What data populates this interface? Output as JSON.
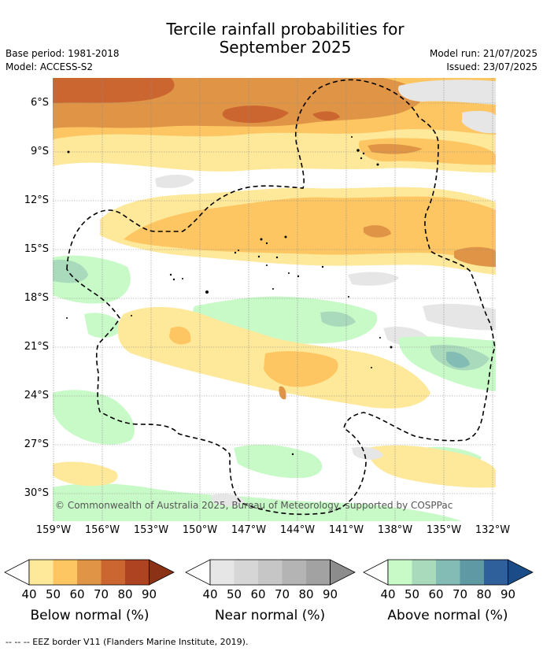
{
  "title_line1": "Tercile rainfall probabilities for",
  "title_line2": "September 2025",
  "base_period": "Base period: 1981-2018",
  "model": "Model: ACCESS-S2",
  "model_run": "Model run: 21/07/2025",
  "issued": "Issued: 23/07/2025",
  "lat_labels": [
    "6°S",
    "9°S",
    "12°S",
    "15°S",
    "18°S",
    "21°S",
    "24°S",
    "27°S",
    "30°S"
  ],
  "lon_labels": [
    "159°W",
    "156°W",
    "153°W",
    "150°W",
    "147°W",
    "144°W",
    "141°W",
    "138°W",
    "135°W",
    "132°W"
  ],
  "copyright": "© Commonwealth of Australia 2025, Bureau of Meteorology, supported by COSPPac",
  "footer": "--  --  -- EEZ border V11 (Flanders Marine Institute, 2019).",
  "colorbars": [
    {
      "name": "below",
      "title": "Below normal (%)",
      "ticks": [
        "40",
        "50",
        "60",
        "70",
        "80",
        "90"
      ],
      "colors": [
        "#ffffff",
        "#fee899",
        "#fdc662",
        "#e09445",
        "#cc6630",
        "#ad4321",
        "#8b3216"
      ]
    },
    {
      "name": "near",
      "title": "Near normal (%)",
      "ticks": [
        "40",
        "50",
        "60",
        "70",
        "80",
        "90"
      ],
      "colors": [
        "#ffffff",
        "#e6e6e6",
        "#d6d6d6",
        "#c6c6c6",
        "#b4b4b4",
        "#a2a2a2",
        "#8c8c8c"
      ]
    },
    {
      "name": "above",
      "title": "Above normal (%)",
      "ticks": [
        "40",
        "50",
        "60",
        "70",
        "80",
        "90"
      ],
      "colors": [
        "#ffffff",
        "#c8fac8",
        "#a8dabb",
        "#82bcb4",
        "#5f99a4",
        "#30609b",
        "#1c4c88"
      ]
    }
  ]
}
